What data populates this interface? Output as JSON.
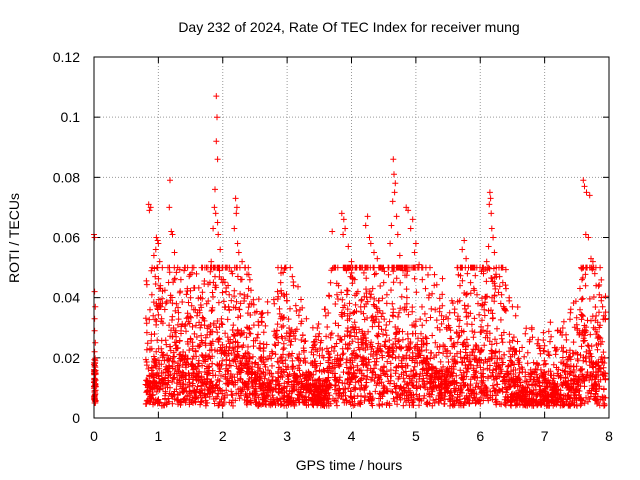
{
  "chart_data": {
    "type": "scatter",
    "title": "Day 232 of 2024, Rate Of TEC Index for receiver mung",
    "xlabel": "GPS time / hours",
    "ylabel": "ROTI / TECUs",
    "xlim": [
      0,
      8
    ],
    "ylim": [
      0,
      0.12
    ],
    "xticks": [
      0,
      1,
      2,
      3,
      4,
      5,
      6,
      7,
      8
    ],
    "xtick_labels": [
      "0",
      "1",
      "2",
      "3",
      "4",
      "5",
      "6",
      "7",
      "8"
    ],
    "yticks": [
      0,
      0.02,
      0.04,
      0.06,
      0.08,
      0.1,
      0.12
    ],
    "ytick_labels": [
      "0",
      "0.02",
      "0.04",
      "0.06",
      "0.08",
      "0.1",
      "0.12"
    ],
    "grid": true,
    "marker": "+",
    "marker_color": "#ff0000",
    "series": [
      {
        "name": "ROTI",
        "points": [
          [
            0.0,
            0.061
          ],
          [
            0.01,
            0.06
          ],
          [
            0.01,
            0.042
          ],
          [
            0.02,
            0.037
          ],
          [
            0.01,
            0.033
          ],
          [
            0.01,
            0.029
          ],
          [
            0.02,
            0.025
          ],
          [
            0.01,
            0.022
          ],
          [
            0.02,
            0.019
          ],
          [
            0.01,
            0.017
          ],
          [
            0.02,
            0.015
          ],
          [
            0.01,
            0.013
          ],
          [
            0.02,
            0.011
          ],
          [
            0.01,
            0.009
          ],
          [
            0.02,
            0.008
          ],
          [
            0.01,
            0.006
          ],
          [
            0.02,
            0.005
          ],
          [
            0.85,
            0.071
          ],
          [
            0.88,
            0.07
          ],
          [
            0.86,
            0.069
          ],
          [
            0.97,
            0.06
          ],
          [
            0.99,
            0.059
          ],
          [
            1.0,
            0.058
          ],
          [
            0.96,
            0.056
          ],
          [
            0.93,
            0.054
          ],
          [
            1.02,
            0.052
          ],
          [
            0.98,
            0.05
          ],
          [
            0.95,
            0.047
          ],
          [
            1.03,
            0.044
          ],
          [
            1.01,
            0.043
          ],
          [
            0.9,
            0.041
          ],
          [
            0.97,
            0.038
          ],
          [
            0.87,
            0.036
          ],
          [
            0.92,
            0.034
          ],
          [
            1.05,
            0.033
          ],
          [
            1.18,
            0.079
          ],
          [
            1.17,
            0.07
          ],
          [
            1.2,
            0.062
          ],
          [
            1.22,
            0.061
          ],
          [
            1.25,
            0.055
          ],
          [
            1.3,
            0.05
          ],
          [
            1.4,
            0.049
          ],
          [
            1.35,
            0.046
          ],
          [
            1.45,
            0.043
          ],
          [
            1.5,
            0.04
          ],
          [
            1.28,
            0.038
          ],
          [
            1.55,
            0.036
          ],
          [
            1.6,
            0.034
          ],
          [
            1.42,
            0.031
          ],
          [
            1.65,
            0.03
          ],
          [
            1.7,
            0.033
          ],
          [
            1.75,
            0.038
          ],
          [
            1.8,
            0.045
          ],
          [
            1.9,
            0.107
          ],
          [
            1.91,
            0.1
          ],
          [
            1.9,
            0.092
          ],
          [
            1.92,
            0.086
          ],
          [
            1.88,
            0.076
          ],
          [
            1.87,
            0.07
          ],
          [
            1.89,
            0.068
          ],
          [
            1.92,
            0.065
          ],
          [
            1.85,
            0.063
          ],
          [
            1.93,
            0.061
          ],
          [
            1.96,
            0.056
          ],
          [
            1.82,
            0.052
          ],
          [
            1.95,
            0.049
          ],
          [
            1.88,
            0.047
          ],
          [
            2.0,
            0.045
          ],
          [
            2.05,
            0.042
          ],
          [
            2.2,
            0.073
          ],
          [
            2.22,
            0.07
          ],
          [
            2.21,
            0.068
          ],
          [
            2.18,
            0.063
          ],
          [
            2.23,
            0.058
          ],
          [
            2.25,
            0.055
          ],
          [
            2.3,
            0.052
          ],
          [
            2.35,
            0.05
          ],
          [
            2.15,
            0.048
          ],
          [
            2.28,
            0.046
          ],
          [
            2.4,
            0.043
          ],
          [
            2.1,
            0.041
          ],
          [
            2.45,
            0.038
          ],
          [
            2.5,
            0.035
          ],
          [
            2.55,
            0.032
          ],
          [
            2.7,
            0.035
          ],
          [
            2.8,
            0.038
          ],
          [
            2.85,
            0.042
          ],
          [
            2.9,
            0.045
          ],
          [
            2.95,
            0.041
          ],
          [
            3.05,
            0.05
          ],
          [
            3.08,
            0.047
          ],
          [
            3.1,
            0.044
          ],
          [
            3.0,
            0.039
          ],
          [
            3.2,
            0.036
          ],
          [
            3.3,
            0.033
          ],
          [
            3.4,
            0.03
          ],
          [
            3.5,
            0.028
          ],
          [
            3.6,
            0.034
          ],
          [
            3.7,
            0.062
          ],
          [
            3.85,
            0.068
          ],
          [
            3.88,
            0.066
          ],
          [
            3.9,
            0.063
          ],
          [
            3.87,
            0.061
          ],
          [
            3.95,
            0.057
          ],
          [
            4.0,
            0.052
          ],
          [
            3.92,
            0.049
          ],
          [
            4.05,
            0.046
          ],
          [
            3.8,
            0.044
          ],
          [
            4.1,
            0.042
          ],
          [
            4.15,
            0.039
          ],
          [
            4.2,
            0.037
          ],
          [
            4.25,
            0.067
          ],
          [
            4.22,
            0.064
          ],
          [
            4.28,
            0.06
          ],
          [
            4.3,
            0.058
          ],
          [
            4.35,
            0.055
          ],
          [
            4.4,
            0.053
          ],
          [
            4.45,
            0.05
          ],
          [
            4.38,
            0.048
          ],
          [
            4.5,
            0.045
          ],
          [
            4.33,
            0.043
          ],
          [
            4.55,
            0.041
          ],
          [
            4.42,
            0.039
          ],
          [
            4.65,
            0.086
          ],
          [
            4.66,
            0.081
          ],
          [
            4.68,
            0.078
          ],
          [
            4.67,
            0.075
          ],
          [
            4.64,
            0.072
          ],
          [
            4.7,
            0.067
          ],
          [
            4.62,
            0.064
          ],
          [
            4.72,
            0.061
          ],
          [
            4.6,
            0.058
          ],
          [
            4.75,
            0.054
          ],
          [
            4.85,
            0.07
          ],
          [
            4.88,
            0.069
          ],
          [
            4.95,
            0.066
          ],
          [
            4.92,
            0.063
          ],
          [
            5.0,
            0.058
          ],
          [
            4.98,
            0.055
          ],
          [
            5.05,
            0.051
          ],
          [
            4.8,
            0.049
          ],
          [
            5.1,
            0.046
          ],
          [
            5.15,
            0.043
          ],
          [
            5.2,
            0.04
          ],
          [
            5.3,
            0.036
          ],
          [
            5.4,
            0.034
          ],
          [
            5.5,
            0.033
          ],
          [
            5.6,
            0.035
          ],
          [
            5.7,
            0.05
          ],
          [
            5.75,
            0.059
          ],
          [
            5.72,
            0.056
          ],
          [
            5.78,
            0.053
          ],
          [
            5.8,
            0.048
          ],
          [
            5.85,
            0.045
          ],
          [
            5.9,
            0.043
          ],
          [
            5.95,
            0.041
          ],
          [
            6.15,
            0.075
          ],
          [
            6.16,
            0.073
          ],
          [
            6.14,
            0.071
          ],
          [
            6.17,
            0.068
          ],
          [
            6.18,
            0.063
          ],
          [
            6.2,
            0.06
          ],
          [
            6.13,
            0.057
          ],
          [
            6.22,
            0.055
          ],
          [
            6.1,
            0.052
          ],
          [
            6.25,
            0.05
          ],
          [
            6.05,
            0.048
          ],
          [
            6.3,
            0.047
          ],
          [
            6.35,
            0.045
          ],
          [
            6.4,
            0.043
          ],
          [
            6.45,
            0.04
          ],
          [
            6.5,
            0.037
          ],
          [
            6.55,
            0.034
          ],
          [
            6.7,
            0.028
          ],
          [
            6.8,
            0.03
          ],
          [
            6.9,
            0.026
          ],
          [
            7.0,
            0.024
          ],
          [
            7.1,
            0.027
          ],
          [
            7.2,
            0.029
          ],
          [
            7.3,
            0.032
          ],
          [
            7.4,
            0.035
          ],
          [
            7.6,
            0.079
          ],
          [
            7.62,
            0.077
          ],
          [
            7.65,
            0.075
          ],
          [
            7.7,
            0.074
          ],
          [
            7.64,
            0.061
          ],
          [
            7.68,
            0.06
          ],
          [
            7.72,
            0.053
          ],
          [
            7.75,
            0.052
          ],
          [
            7.66,
            0.05
          ],
          [
            7.78,
            0.048
          ],
          [
            7.58,
            0.046
          ],
          [
            7.8,
            0.044
          ],
          [
            7.85,
            0.041
          ],
          [
            7.88,
            0.039
          ],
          [
            7.9,
            0.037
          ],
          [
            7.55,
            0.036
          ],
          [
            7.92,
            0.034
          ],
          [
            7.5,
            0.031
          ]
        ]
      }
    ]
  }
}
